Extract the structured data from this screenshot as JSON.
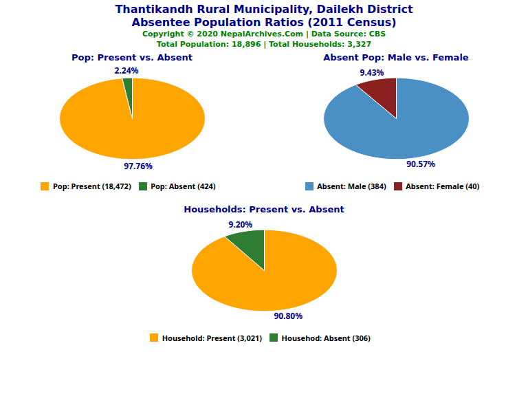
{
  "title": "Thantikandh Rural Municipality, Dailekh District",
  "subtitle": "Absentee Population Ratios (2011 Census)",
  "annotations": [
    "Copyright © 2020 NepalArchives.Com | Data Source: CBS",
    "Total Population: 18,896 | Total Households: 3,327"
  ],
  "chart_data": [
    {
      "type": "pie",
      "title": "Pop: Present vs. Absent",
      "categories": [
        "Pop: Present (18,472)",
        "Pop: Absent (424)"
      ],
      "values": [
        97.76,
        2.24
      ],
      "value_labels": [
        "97.76%",
        "2.24%"
      ],
      "colors": [
        "#FFA500",
        "#2E7D32"
      ],
      "data_labels": true
    },
    {
      "type": "pie",
      "title": "Absent Pop: Male vs. Female",
      "categories": [
        "Absent: Male (384)",
        "Absent: Female (40)"
      ],
      "values": [
        90.57,
        9.43
      ],
      "value_labels": [
        "90.57%",
        "9.43%"
      ],
      "colors": [
        "#4A90C4",
        "#8B2020"
      ],
      "data_labels": true
    },
    {
      "type": "pie",
      "title": "Households: Present vs. Absent",
      "categories": [
        "Household: Present (3,021)",
        "Househod: Absent (306)"
      ],
      "values": [
        90.8,
        9.2
      ],
      "value_labels": [
        "90.80%",
        "9.20%"
      ],
      "colors": [
        "#FFA500",
        "#2E7D32"
      ],
      "data_labels": true
    }
  ]
}
